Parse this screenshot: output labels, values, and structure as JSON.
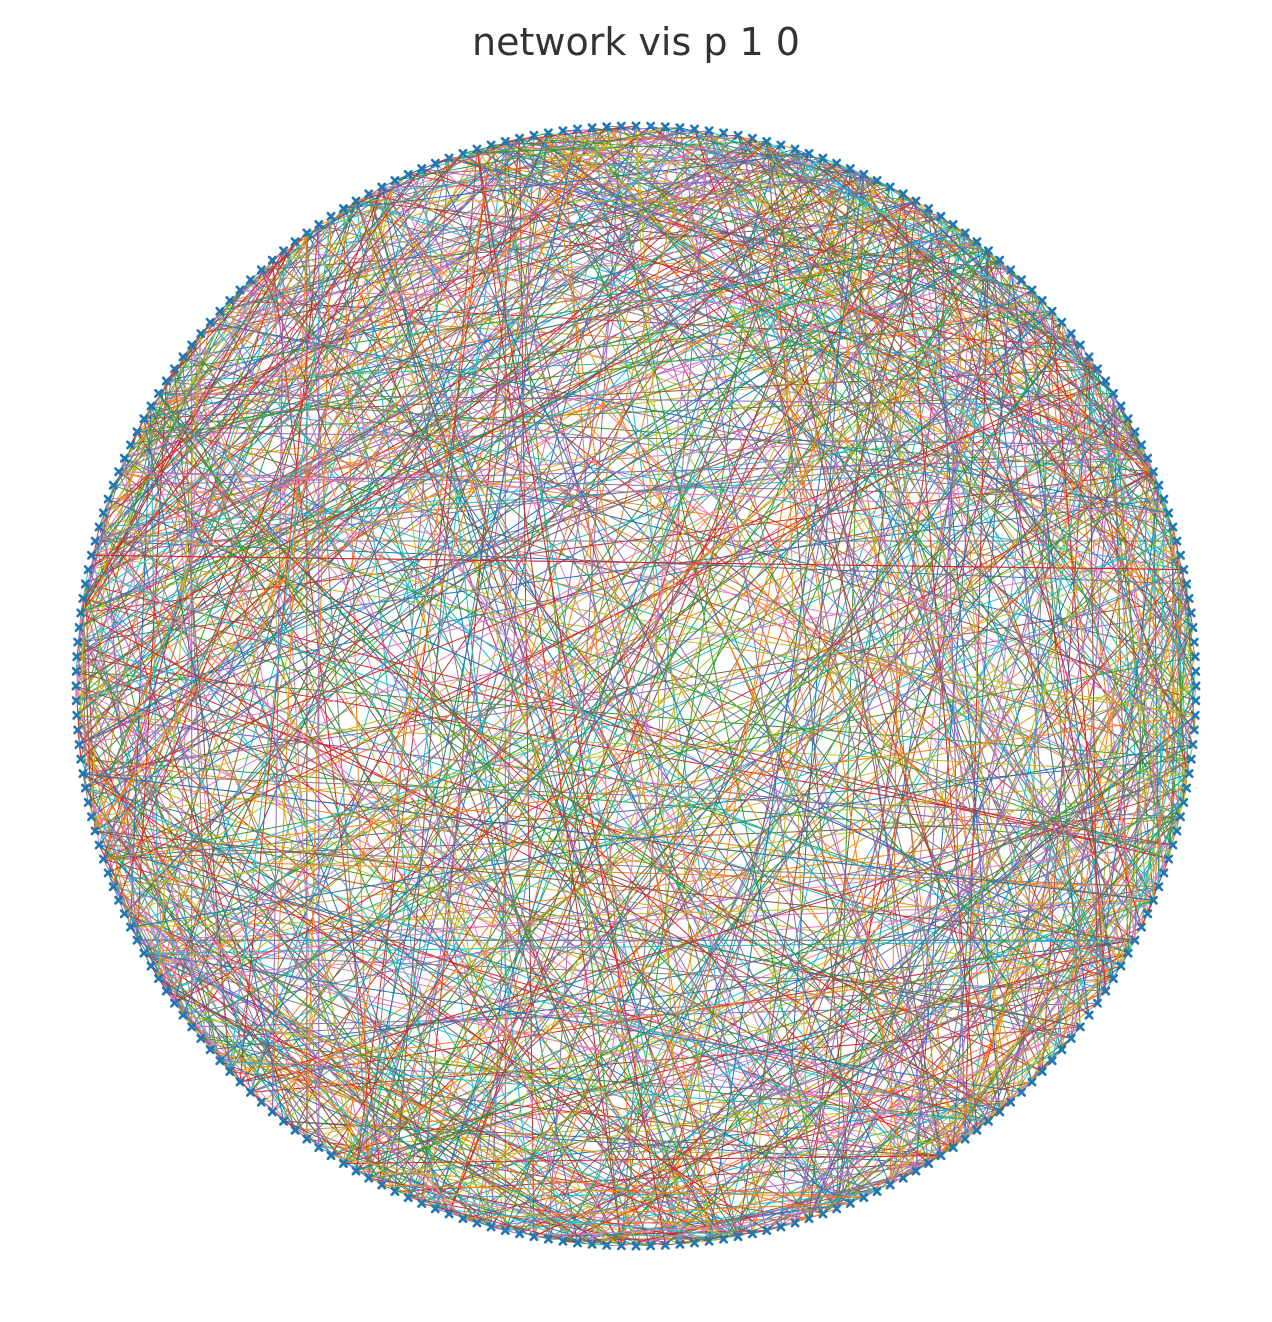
{
  "figure": {
    "title": "network vis p 1 0"
  },
  "graph": {
    "layout": "circular",
    "node_count": 240,
    "edge_count": 1200,
    "random_seed": 10,
    "node_marker": "x",
    "node_color": "#1f77b4",
    "edge_colors": [
      "#1f77b4",
      "#ff7f0e",
      "#2ca02c",
      "#d62728",
      "#9467bd",
      "#8c564b",
      "#e377c2",
      "#7f7f7f",
      "#bcbd22",
      "#17becf"
    ],
    "axes_visible": false
  }
}
